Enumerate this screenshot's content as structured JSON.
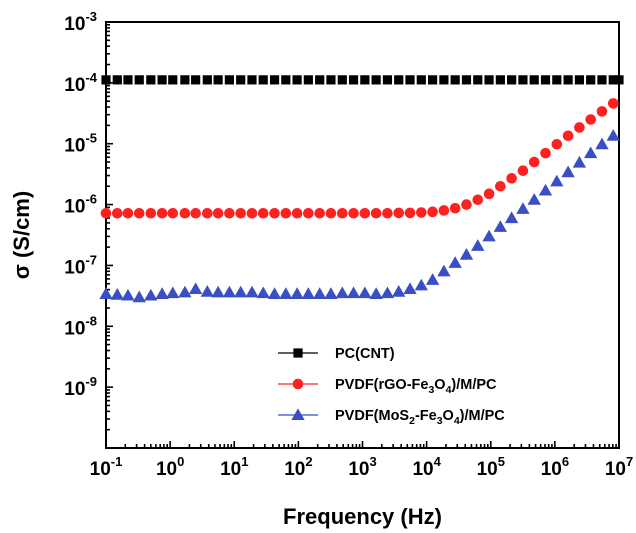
{
  "chart_data": {
    "type": "scatter",
    "title": "",
    "xlabel": "Frequency (Hz)",
    "ylabel": "σ (S/cm)",
    "x_scale": "log",
    "y_scale": "log",
    "xlim": [
      0.1,
      10000000
    ],
    "ylim": [
      1e-10,
      0.001
    ],
    "x_ticks": [
      {
        "value": 0.1,
        "base": "10",
        "exp": "-1"
      },
      {
        "value": 1,
        "base": "10",
        "exp": "0"
      },
      {
        "value": 10,
        "base": "10",
        "exp": "1"
      },
      {
        "value": 100,
        "base": "10",
        "exp": "2"
      },
      {
        "value": 1000,
        "base": "10",
        "exp": "3"
      },
      {
        "value": 10000,
        "base": "10",
        "exp": "4"
      },
      {
        "value": 100000,
        "base": "10",
        "exp": "5"
      },
      {
        "value": 1000000,
        "base": "10",
        "exp": "6"
      },
      {
        "value": 10000000,
        "base": "10",
        "exp": "7"
      }
    ],
    "y_ticks": [
      {
        "value": 0.001,
        "base": "10",
        "exp": "-3"
      },
      {
        "value": 0.0001,
        "base": "10",
        "exp": "-4"
      },
      {
        "value": 1e-05,
        "base": "10",
        "exp": "-5"
      },
      {
        "value": 1e-06,
        "base": "10",
        "exp": "-6"
      },
      {
        "value": 1e-07,
        "base": "10",
        "exp": "-7"
      },
      {
        "value": 1e-08,
        "base": "10",
        "exp": "-8"
      },
      {
        "value": 1e-09,
        "base": "10",
        "exp": "-9"
      }
    ],
    "grid": false,
    "legend_position": "bottom-right",
    "series": [
      {
        "name": "PC(CNT)",
        "legend_parts": [
          {
            "t": "PC(CNT)"
          }
        ],
        "marker": "square",
        "color": "#000000",
        "x": [
          0.1,
          0.15,
          0.22,
          0.33,
          0.5,
          0.75,
          1.1,
          1.7,
          2.5,
          3.8,
          5.6,
          8.4,
          12.6,
          18.9,
          28.3,
          42.5,
          63.7,
          95.5,
          143,
          215,
          322,
          484,
          725,
          1088,
          1632,
          2448,
          3672,
          5508,
          8262,
          12393,
          18590,
          27885,
          41827,
          62741,
          94111,
          141167,
          211750,
          317625,
          476437,
          714656,
          1071984,
          1607976,
          2411964,
          3617946,
          5426919,
          8140378,
          10000000
        ],
        "y": [
          0.000112,
          0.000112,
          0.000112,
          0.000112,
          0.000112,
          0.000112,
          0.000112,
          0.000112,
          0.000112,
          0.000112,
          0.000112,
          0.000112,
          0.000112,
          0.000112,
          0.000112,
          0.000112,
          0.000112,
          0.000112,
          0.000112,
          0.000112,
          0.000112,
          0.000112,
          0.000112,
          0.000112,
          0.000112,
          0.000112,
          0.000112,
          0.000112,
          0.000112,
          0.000112,
          0.000112,
          0.000112,
          0.000112,
          0.000112,
          0.000112,
          0.000112,
          0.000112,
          0.000112,
          0.000112,
          0.000112,
          0.000112,
          0.000112,
          0.000112,
          0.000112,
          0.000112,
          0.000112,
          0.000112
        ]
      },
      {
        "name": "PVDF(rGO-Fe3O4)/M/PC",
        "legend_parts": [
          {
            "t": "PVDF(rGO-Fe"
          },
          {
            "t": "3",
            "sub": true
          },
          {
            "t": "O"
          },
          {
            "t": "4",
            "sub": true
          },
          {
            "t": ")/M/PC"
          }
        ],
        "marker": "circle",
        "color": "#ff2020",
        "x": [
          0.1,
          0.15,
          0.22,
          0.33,
          0.5,
          0.75,
          1.1,
          1.7,
          2.5,
          3.8,
          5.6,
          8.4,
          12.6,
          18.9,
          28.3,
          42.5,
          63.7,
          95.5,
          143,
          215,
          322,
          484,
          725,
          1088,
          1632,
          2448,
          3672,
          5508,
          8262,
          12393,
          18590,
          27885,
          41827,
          62741,
          94111,
          141167,
          211750,
          317625,
          476437,
          714656,
          1071984,
          1607976,
          2411964,
          3617946,
          5426919,
          8140378
        ],
        "y": [
          7.2e-07,
          7.2e-07,
          7.2e-07,
          7.2e-07,
          7.2e-07,
          7.2e-07,
          7.2e-07,
          7.2e-07,
          7.2e-07,
          7.2e-07,
          7.2e-07,
          7.2e-07,
          7.2e-07,
          7.2e-07,
          7.2e-07,
          7.2e-07,
          7.2e-07,
          7.2e-07,
          7.2e-07,
          7.2e-07,
          7.2e-07,
          7.2e-07,
          7.2e-07,
          7.2e-07,
          7.2e-07,
          7.2e-07,
          7.3e-07,
          7.3e-07,
          7.4e-07,
          7.6e-07,
          8e-07,
          8.7e-07,
          1e-06,
          1.2e-06,
          1.5e-06,
          2e-06,
          2.7e-06,
          3.6e-06,
          5e-06,
          7e-06,
          9.8e-06,
          1.35e-05,
          1.85e-05,
          2.5e-05,
          3.4e-05,
          4.6e-05
        ]
      },
      {
        "name": "PVDF(MoS2-Fe3O4)/M/PC",
        "legend_parts": [
          {
            "t": "PVDF(MoS"
          },
          {
            "t": "2",
            "sub": true
          },
          {
            "t": "-Fe"
          },
          {
            "t": "3",
            "sub": true
          },
          {
            "t": "O"
          },
          {
            "t": "4",
            "sub": true
          },
          {
            "t": ")/M/PC"
          }
        ],
        "marker": "triangle",
        "color": "#3a4fc4",
        "x": [
          0.1,
          0.15,
          0.22,
          0.33,
          0.5,
          0.75,
          1.1,
          1.7,
          2.5,
          3.8,
          5.6,
          8.4,
          12.6,
          18.9,
          28.3,
          42.5,
          63.7,
          95.5,
          143,
          215,
          322,
          484,
          725,
          1088,
          1632,
          2448,
          3672,
          5508,
          8262,
          12393,
          18590,
          27885,
          41827,
          62741,
          94111,
          141167,
          211750,
          317625,
          476437,
          714656,
          1071984,
          1607976,
          2411964,
          3617946,
          5426919,
          8140378
        ],
        "y": [
          3.4e-08,
          3.3e-08,
          3.2e-08,
          3e-08,
          3.2e-08,
          3.4e-08,
          3.5e-08,
          3.6e-08,
          4.1e-08,
          3.7e-08,
          3.6e-08,
          3.6e-08,
          3.6e-08,
          3.6e-08,
          3.5e-08,
          3.4e-08,
          3.4e-08,
          3.4e-08,
          3.4e-08,
          3.4e-08,
          3.4e-08,
          3.5e-08,
          3.5e-08,
          3.5e-08,
          3.4e-08,
          3.5e-08,
          3.7e-08,
          4.1e-08,
          4.7e-08,
          5.8e-08,
          8e-08,
          1.1e-07,
          1.5e-07,
          2.1e-07,
          3e-07,
          4.3e-07,
          6e-07,
          8.5e-07,
          1.2e-06,
          1.7e-06,
          2.4e-06,
          3.4e-06,
          4.9e-06,
          7e-06,
          9.8e-06,
          1.35e-05
        ]
      }
    ]
  }
}
